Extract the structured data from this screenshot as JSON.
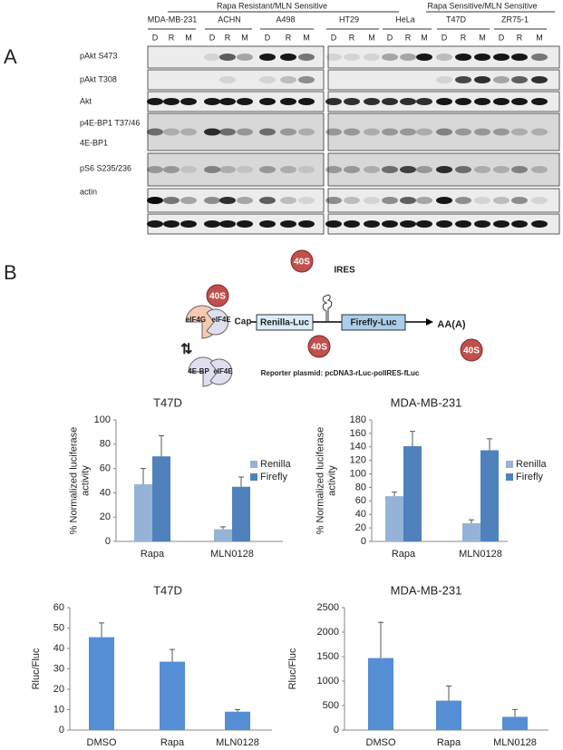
{
  "panel_a": {
    "label": "A",
    "groups": [
      "Rapa Resistant/MLN Sensitive",
      "Rapa Sensitive/MLN Sensitive"
    ],
    "cell_lines": [
      "MDA-MB-231",
      "ACHN",
      "A498",
      "HT29",
      "HeLa",
      "T47D",
      "ZR75-1"
    ],
    "lanes": [
      "D",
      "R",
      "M"
    ],
    "rows": [
      "pAkt S473",
      "pAkt T308",
      "Akt",
      "p4E-BP1 T37/46",
      "4E-BP1",
      "pS6 S235/236",
      "actin"
    ]
  },
  "panel_b": {
    "label": "B",
    "diagram": {
      "ribosome": "40S",
      "eif4g": "eIF4G",
      "eif4e": "eIF4E",
      "cap": "Cap",
      "renilla": "Renilla-Luc",
      "firefly": "Firefly-Luc",
      "ires": "IRES",
      "polya": "AA(A)",
      "bp1": "4E-BP",
      "plasmid": "Reporter plasmid: pcDNA3-rLuc-polIRES-fLuc"
    }
  },
  "chart_data": [
    {
      "type": "bar",
      "title": "T47D",
      "categories": [
        "Rapa",
        "MLN0128"
      ],
      "series": [
        {
          "name": "Renilla",
          "color": "#95b3d7",
          "values": [
            47,
            10
          ],
          "errors": [
            13,
            2
          ]
        },
        {
          "name": "Firefly",
          "color": "#4f81bd",
          "values": [
            70,
            45
          ],
          "errors": [
            17,
            8
          ]
        }
      ],
      "ylim": [
        0,
        100
      ],
      "yticks": [
        0,
        20,
        40,
        60,
        80,
        100
      ],
      "ylabel_lines": [
        "% Normalized luciferase",
        "activity"
      ]
    },
    {
      "type": "bar",
      "title": "MDA-MB-231",
      "categories": [
        "Rapa",
        "MLN0128"
      ],
      "series": [
        {
          "name": "Renilla",
          "color": "#95b3d7",
          "values": [
            67,
            27
          ],
          "errors": [
            6,
            5
          ]
        },
        {
          "name": "Firefly",
          "color": "#4f81bd",
          "values": [
            141,
            135
          ],
          "errors": [
            22,
            17
          ]
        }
      ],
      "ylim": [
        0,
        180
      ],
      "yticks": [
        0,
        20,
        40,
        60,
        80,
        100,
        120,
        140,
        160,
        180
      ],
      "ylabel_lines": [
        "% Normalized luciferase",
        "activity"
      ]
    },
    {
      "type": "bar",
      "title": "T47D",
      "categories": [
        "DMSO",
        "Rapa",
        "MLN0128"
      ],
      "color": "#558ed5",
      "values": [
        45.5,
        33.5,
        9
      ],
      "errors": [
        7,
        6,
        1
      ],
      "ylim": [
        0,
        60
      ],
      "yticks": [
        0,
        10,
        20,
        30,
        40,
        50,
        60
      ],
      "ylabel_lines": [
        "Rluc/Fluc"
      ]
    },
    {
      "type": "bar",
      "title": "MDA-MB-231",
      "categories": [
        "DMSO",
        "Rapa",
        "MLN0128"
      ],
      "color": "#558ed5",
      "values": [
        1470,
        600,
        270
      ],
      "errors": [
        730,
        300,
        150
      ],
      "ylim": [
        0,
        2500
      ],
      "yticks": [
        0,
        500,
        1000,
        1500,
        2000,
        2500
      ],
      "ylabel_lines": [
        "Rluc/Fluc"
      ]
    }
  ]
}
